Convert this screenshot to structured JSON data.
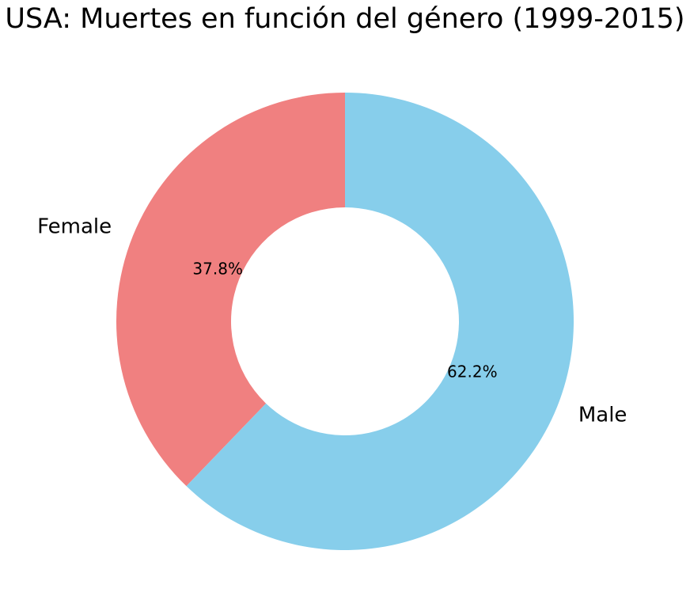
{
  "chart_data": {
    "type": "pie",
    "variant": "donut",
    "title": "USA: Muertes en función del género (1999-2015)",
    "categories": [
      "Female",
      "Male"
    ],
    "values": [
      37.8,
      62.2
    ],
    "value_labels": [
      "37.8%",
      "62.2%"
    ],
    "colors": [
      "#f08080",
      "#87ceeb"
    ],
    "start_angle_deg": 90,
    "direction": "counterclockwise",
    "legend": "none"
  }
}
